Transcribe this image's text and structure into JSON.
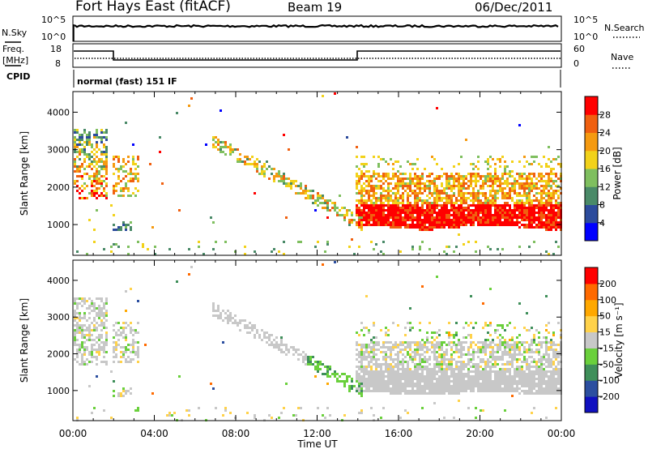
{
  "header": {
    "title": "Fort Hays East (fitACF)",
    "beam": "Beam 19",
    "date": "06/Dec/2011"
  },
  "panels": {
    "nsky": {
      "label": "N.Sky",
      "tick_top": "10^5",
      "tick_bot": "10^0"
    },
    "nsearch": {
      "label": "N.Search",
      "tick_top": "10^5",
      "tick_bot": "10^0"
    },
    "freq": {
      "label_line1": "Freq.",
      "label_line2": "[MHz]",
      "tick_top": "18",
      "tick_bot": "8"
    },
    "nave": {
      "label": "Nave",
      "tick_top": "60",
      "tick_bot": "0"
    },
    "cpid": {
      "label": "CPID",
      "mode": "normal (fast) 151 IF"
    }
  },
  "colors": {
    "power_scale": [
      "#0000ff",
      "#2c4b9c",
      "#4a8a68",
      "#7fbf5f",
      "#f2d21a",
      "#f59a10",
      "#f06010",
      "#ff0000"
    ],
    "velocity_scale": [
      "#ff0000",
      "#ff6a00",
      "#ffa800",
      "#ffd24a",
      "#c8c8c8",
      "#6ad03c",
      "#3f8f5a",
      "#2c4fa0",
      "#1010c0"
    ]
  },
  "chart_data": [
    {
      "type": "heatmap",
      "title": "",
      "xlabel": "Time UT",
      "ylabel": "Slant Range [km]",
      "x_ticks": [
        "00:00",
        "04:00",
        "08:00",
        "12:00",
        "16:00",
        "20:00",
        "00:00"
      ],
      "y_ticks": [
        "1000",
        "2000",
        "3000",
        "4000"
      ],
      "xlim_hours": [
        0,
        24
      ],
      "ylim_km": [
        180,
        4550
      ],
      "colorbar": {
        "label": "Power [dB]",
        "ticks": [
          "4",
          "8",
          "12",
          "16",
          "20",
          "24",
          "28"
        ],
        "range": [
          0,
          30
        ]
      },
      "grid": false
    },
    {
      "type": "heatmap",
      "title": "",
      "xlabel": "Time UT",
      "ylabel": "Slant Range [km]",
      "x_ticks": [
        "00:00",
        "04:00",
        "08:00",
        "12:00",
        "16:00",
        "20:00",
        "00:00"
      ],
      "y_ticks": [
        "1000",
        "2000",
        "3000",
        "4000"
      ],
      "xlim_hours": [
        0,
        24
      ],
      "ylim_km": [
        180,
        4550
      ],
      "colorbar": {
        "label_text": "Velocity",
        "label_unit": "[m s⁻¹]",
        "ticks": [
          "200",
          "100",
          "50",
          "15",
          "-15",
          "-50",
          "-100",
          "-200"
        ],
        "range": [
          -250,
          250
        ]
      },
      "grid": false
    }
  ]
}
